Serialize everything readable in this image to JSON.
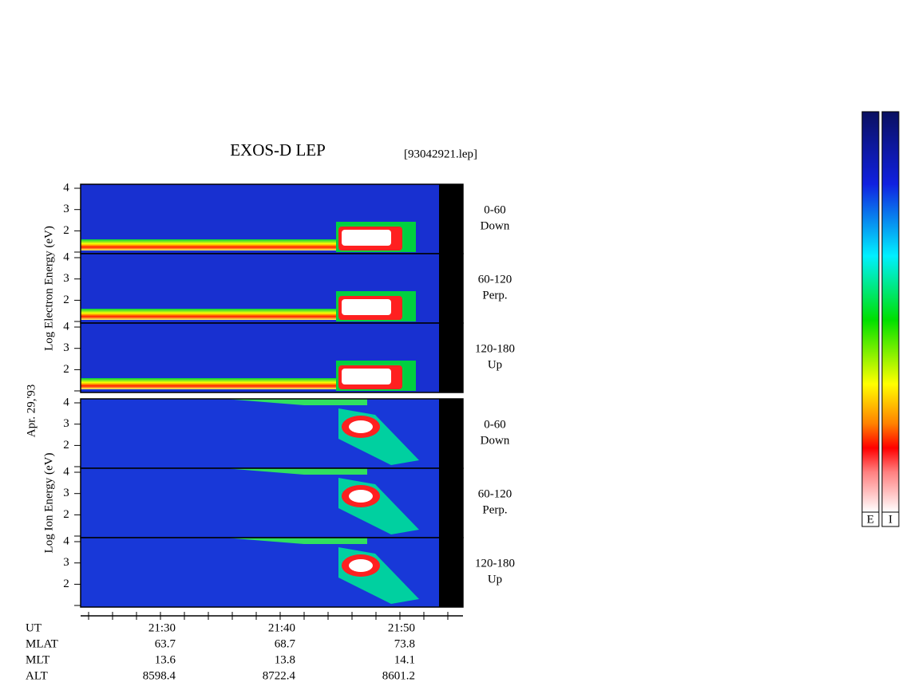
{
  "header": {
    "title": "EXOS-D LEP",
    "file": "[93042921.lep]"
  },
  "date": "Apr. 29,'93",
  "energy_ticks": [
    "4",
    "3",
    "2"
  ],
  "groups": [
    {
      "axis_label": "Log Electron Energy (eV)",
      "panels": [
        {
          "pitch": "0-60",
          "direction": "Down"
        },
        {
          "pitch": "60-120",
          "direction": "Perp."
        },
        {
          "pitch": "120-180",
          "direction": "Up"
        }
      ]
    },
    {
      "axis_label": "Log Ion Energy (eV)",
      "panels": [
        {
          "pitch": "0-60",
          "direction": "Down"
        },
        {
          "pitch": "60-120",
          "direction": "Perp."
        },
        {
          "pitch": "120-180",
          "direction": "Up"
        }
      ]
    }
  ],
  "ephemeris": {
    "rows": [
      [
        "UT",
        "21:30",
        "21:40",
        "21:50"
      ],
      [
        "MLAT",
        "63.7",
        "68.7",
        "73.8"
      ],
      [
        "MLT",
        "13.6",
        "13.8",
        "14.1"
      ],
      [
        "ALT",
        "8598.4",
        "8722.4",
        "8601.2"
      ]
    ]
  },
  "colorbars": [
    "E",
    "I"
  ]
}
